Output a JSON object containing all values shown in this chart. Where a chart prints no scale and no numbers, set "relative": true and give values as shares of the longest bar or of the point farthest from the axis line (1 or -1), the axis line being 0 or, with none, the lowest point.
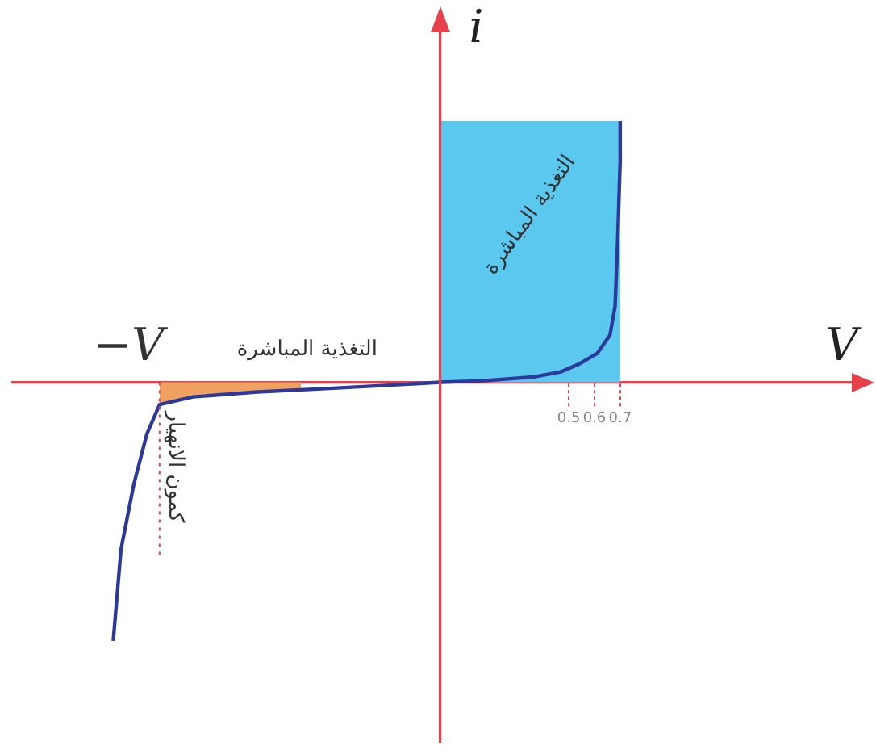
{
  "chart_data": {
    "type": "line",
    "relative": true,
    "xlabel": "V",
    "ylabel": "i",
    "xlim": [
      -1.66,
      1.6
    ],
    "xticks": [
      0.5,
      0.6,
      0.7
    ],
    "legend": false,
    "marker": "none",
    "line_style": "solid",
    "series": [
      {
        "type": "line",
        "color": "#2b3a9a",
        "x": [
          -1.27,
          -1.24,
          -1.19,
          -1.14,
          -1.09,
          -0.96,
          -0.71,
          -0.46,
          -0.21,
          0,
          0.17,
          0.36,
          0.47,
          0.54,
          0.61,
          0.66,
          0.68,
          0.69,
          0.7,
          0.7
        ],
        "values": [
          -0.99,
          -0.64,
          -0.39,
          -0.2,
          -0.085,
          -0.056,
          -0.037,
          -0.025,
          -0.012,
          0,
          0.006,
          0.02,
          0.04,
          0.07,
          0.11,
          0.18,
          0.29,
          0.54,
          0.85,
          1.0
        ]
      },
      {
        "type": "area",
        "color": "#f0a060",
        "x": [
          -1.09,
          -0.96,
          -0.71,
          -0.54
        ],
        "values": [
          -0.085,
          -0.056,
          -0.037,
          -0.029
        ]
      }
    ],
    "bands": [
      {
        "axis": "x",
        "from": 0,
        "to": 0.7,
        "label": "التغذية المباشرة",
        "color": "#5bc8f0"
      }
    ],
    "ref_lines": [
      {
        "axis": "x",
        "value": -1.09,
        "label": "كمون الانهيار",
        "line_style": "dotted"
      },
      {
        "axis": "x",
        "value": 0,
        "color": "#e8404a",
        "line_style": "solid"
      }
    ],
    "annotations": [
      "−V",
      "التغذية المباشرة"
    ]
  }
}
